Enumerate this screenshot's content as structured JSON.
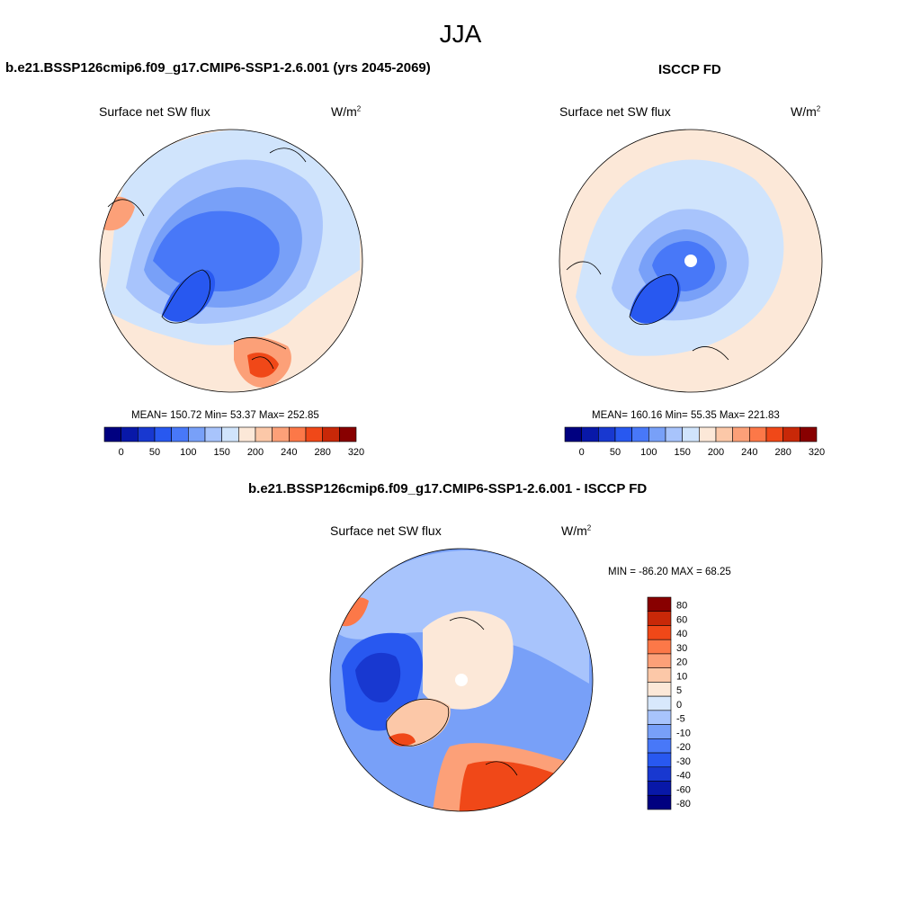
{
  "figure": {
    "title": "JJA"
  },
  "panels": [
    {
      "id": "model",
      "case_title": "b.e21.BSSP126cmip6.f09_g17.CMIP6-SSP1-2.6.001 (yrs 2045-2069)",
      "variable": "Surface net SW flux",
      "units": "W/m",
      "units_sup": "2",
      "stats_text": "MEAN= 150.72  Min=  53.37  Max= 252.85",
      "colorbar_ticks": [
        "0",
        "50",
        "100",
        "150",
        "200",
        "240",
        "280",
        "320"
      ]
    },
    {
      "id": "obs",
      "case_title": "ISCCP FD",
      "variable": "Surface net SW flux",
      "units": "W/m",
      "units_sup": "2",
      "stats_text": "MEAN= 160.16  Min=  55.35  Max= 221.83",
      "colorbar_ticks": [
        "0",
        "50",
        "100",
        "150",
        "200",
        "240",
        "280",
        "320"
      ]
    },
    {
      "id": "diff",
      "case_title": "b.e21.BSSP126cmip6.f09_g17.CMIP6-SSP1-2.6.001 - ISCCP FD",
      "variable": "Surface net SW flux",
      "units": "W/m",
      "units_sup": "2",
      "stats_text": "MIN = -86.20 MAX =  68.25",
      "colorbar_ticks": [
        "80",
        "60",
        "40",
        "30",
        "20",
        "10",
        "5",
        "0",
        "-5",
        "-10",
        "-20",
        "-30",
        "-40",
        "-60",
        "-80"
      ]
    }
  ],
  "colors": {
    "absolute_scale": [
      "#000080",
      "#0818a8",
      "#1838d0",
      "#2858f0",
      "#4878f8",
      "#78a0f8",
      "#a8c4fc",
      "#d0e4fc",
      "#fce8d8",
      "#fcc8a8",
      "#fca078",
      "#fc7848",
      "#f04818",
      "#c82808",
      "#880000"
    ],
    "difference_scale": [
      "#000080",
      "#0818a8",
      "#1838d0",
      "#2858f0",
      "#4878f8",
      "#78a0f8",
      "#a8c4fc",
      "#d8e8fc",
      "#fce8d8",
      "#fcc8a8",
      "#fca078",
      "#fc7848",
      "#f04818",
      "#c82808",
      "#880000"
    ]
  }
}
